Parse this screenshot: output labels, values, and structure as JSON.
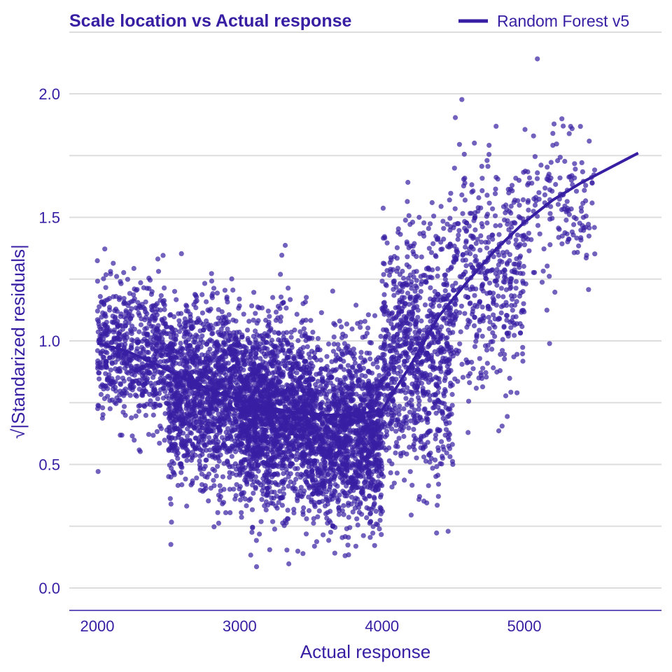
{
  "chart_data": {
    "type": "scatter",
    "title": "Scale location vs Actual response",
    "xlabel": "Actual response",
    "ylabel": "√|Standarized residuals|",
    "xlim": [
      1900,
      6000
    ],
    "ylim": [
      -0.09,
      2.25
    ],
    "x_ticks": [
      2000,
      3000,
      4000,
      5000
    ],
    "y_ticks": [
      0.0,
      0.5,
      1.0,
      1.5,
      2.0
    ],
    "x_tick_labels": [
      "2000",
      "3000",
      "4000",
      "5000"
    ],
    "y_tick_labels": [
      "0.0",
      "0.5",
      "1.0",
      "1.5",
      "2.0"
    ],
    "grid": "horizontal",
    "legend_position": "top-right",
    "colors": {
      "series": "#371ea3",
      "grid": "#dddddd",
      "text": "#371ea3"
    },
    "series": [
      {
        "name": "Random Forest v5",
        "kind": "smooth-line",
        "x": [
          2000,
          2200,
          2400,
          2600,
          2800,
          3000,
          3200,
          3400,
          3600,
          3800,
          4000,
          4200,
          4400,
          4600,
          4800,
          5000,
          5200,
          5400,
          5600,
          5800
        ],
        "y": [
          0.99,
          0.96,
          0.91,
          0.85,
          0.8,
          0.76,
          0.73,
          0.71,
          0.7,
          0.7,
          0.72,
          0.9,
          1.1,
          1.24,
          1.37,
          1.48,
          1.57,
          1.64,
          1.7,
          1.76
        ]
      },
      {
        "name": "observations",
        "kind": "points",
        "density_profile": [
          {
            "x_range": [
              2000,
              2500
            ],
            "center": 0.95,
            "spread": 0.25,
            "count": 650
          },
          {
            "x_range": [
              2500,
              3000
            ],
            "center": 0.78,
            "spread": 0.33,
            "count": 1300
          },
          {
            "x_range": [
              3000,
              3500
            ],
            "center": 0.7,
            "spread": 0.33,
            "count": 1700
          },
          {
            "x_range": [
              3500,
              4000
            ],
            "center": 0.62,
            "spread": 0.32,
            "count": 1450
          },
          {
            "x_range": [
              4000,
              4500
            ],
            "center": 0.95,
            "spread": 0.45,
            "count": 900
          },
          {
            "x_range": [
              4500,
              5000
            ],
            "center": 1.25,
            "spread": 0.4,
            "count": 450
          },
          {
            "x_range": [
              5000,
              5500
            ],
            "center": 1.55,
            "spread": 0.3,
            "count": 160
          }
        ]
      }
    ]
  }
}
